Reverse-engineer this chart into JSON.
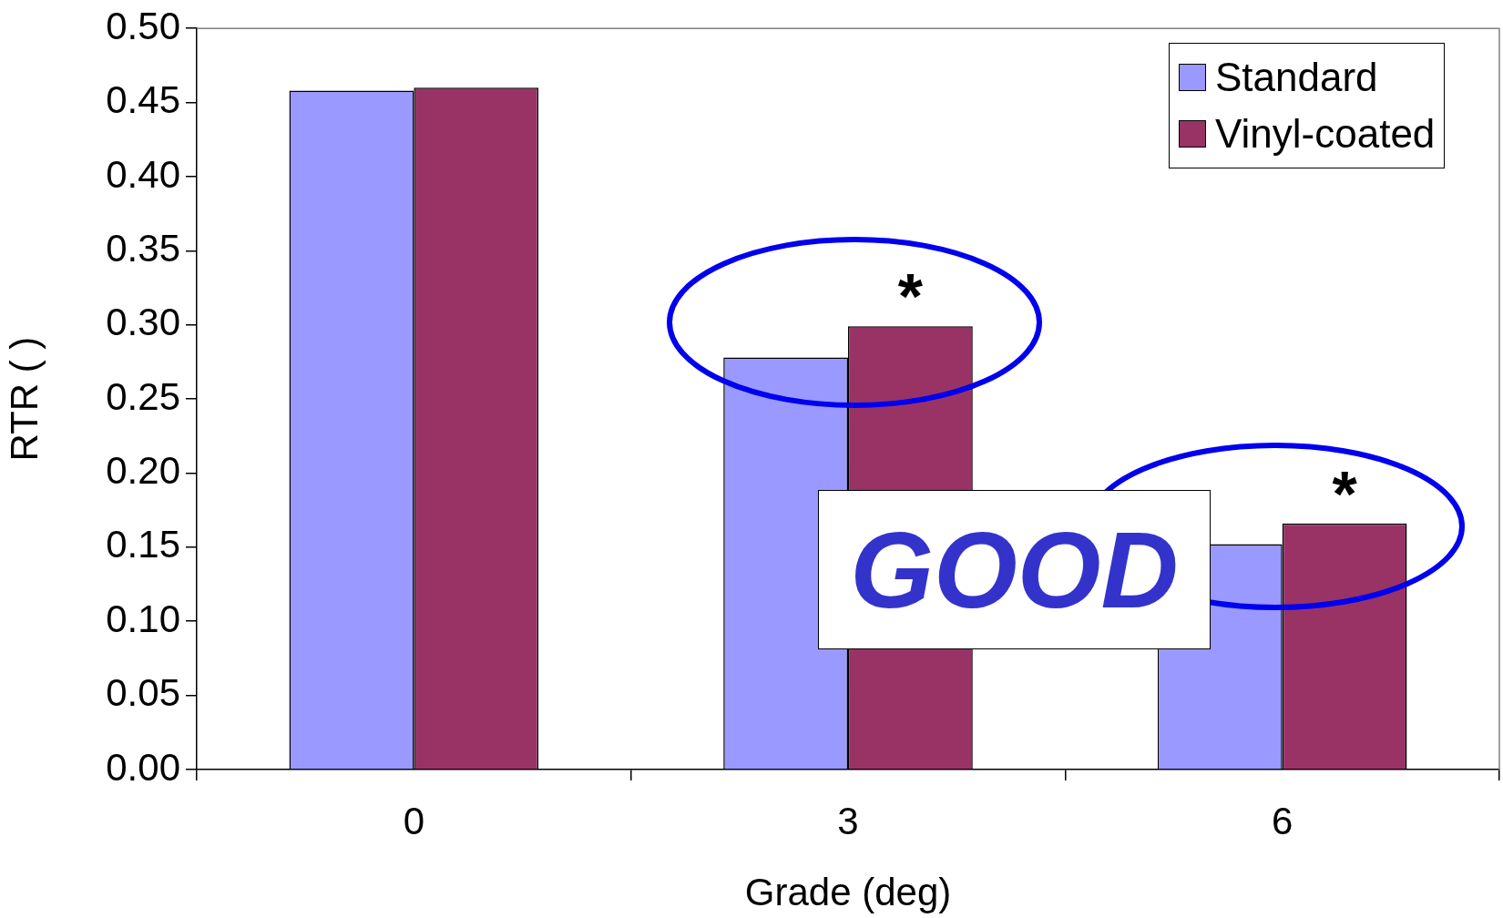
{
  "chart_data": {
    "type": "bar",
    "xlabel": "Grade (deg)",
    "ylabel": "RTR ( )",
    "categories": [
      "0",
      "3",
      "6"
    ],
    "series": [
      {
        "name": "Standard",
        "color": "#9999ff",
        "values": [
          0.458,
          0.278,
          0.152
        ]
      },
      {
        "name": "Vinyl-coated",
        "color": "#993366",
        "values": [
          0.46,
          0.299,
          0.166
        ]
      }
    ],
    "ylim": [
      0,
      0.5
    ],
    "yticks": [
      {
        "value": 0,
        "label": "0.00"
      },
      {
        "value": 0.05,
        "label": "0.05"
      },
      {
        "value": 0.1,
        "label": "0.10"
      },
      {
        "value": 0.15,
        "label": "0.15"
      },
      {
        "value": 0.2,
        "label": "0.20"
      },
      {
        "value": 0.25,
        "label": "0.25"
      },
      {
        "value": 0.3,
        "label": "0.30"
      },
      {
        "value": 0.35,
        "label": "0.35"
      },
      {
        "value": 0.4,
        "label": "0.40"
      },
      {
        "value": 0.45,
        "label": "0.45"
      },
      {
        "value": 0.5,
        "label": "0.50"
      }
    ],
    "annotations": [
      {
        "text": "*",
        "x": "3",
        "y": 0.299
      },
      {
        "text": "*",
        "x": "6",
        "y": 0.166
      },
      "GOOD"
    ],
    "legend": "top right",
    "grid": false
  }
}
